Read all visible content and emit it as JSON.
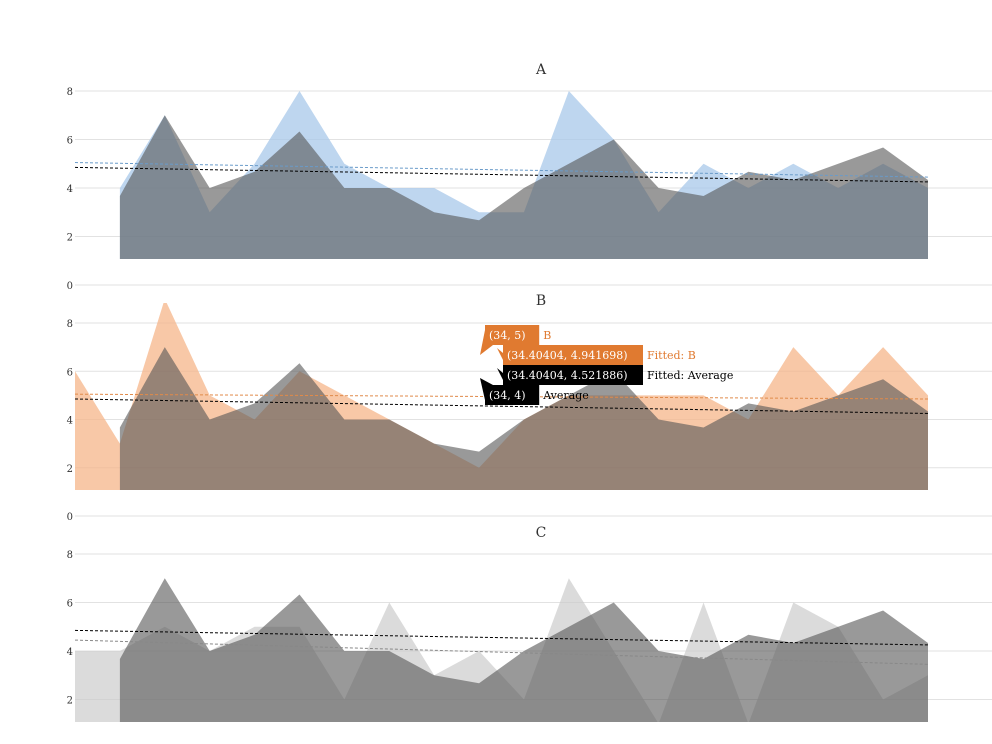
{
  "chart_data": [
    {
      "type": "area",
      "title": "A",
      "ylim": [
        0,
        8
      ],
      "yticks": [
        0,
        2,
        4,
        6,
        8
      ],
      "grid": true,
      "series": [
        {
          "name": "A",
          "color": "#a8c8ea",
          "opacity": 0.75,
          "x": [
            5,
            10,
            15,
            20,
            25,
            30,
            35,
            40,
            45,
            50,
            55,
            60,
            65,
            70,
            75,
            80,
            85,
            90,
            95
          ],
          "values": [
            4,
            7,
            3,
            5,
            8,
            5,
            4,
            4,
            3,
            3,
            8,
            6,
            3,
            5,
            4,
            5,
            4,
            5,
            4
          ]
        },
        {
          "name": "Average",
          "color": "#555555",
          "opacity": 0.6,
          "x": [
            5,
            10,
            15,
            20,
            25,
            30,
            35,
            40,
            45,
            50,
            55,
            60,
            65,
            70,
            75,
            80,
            85,
            90,
            95
          ],
          "values": [
            3.67,
            7.0,
            4.0,
            4.67,
            6.33,
            4.0,
            4.0,
            3.0,
            2.67,
            4.0,
            5.0,
            6.0,
            4.0,
            3.67,
            4.67,
            4.33,
            5.0,
            5.67,
            4.33
          ]
        }
      ],
      "trendlines": [
        {
          "name": "Fitted: A",
          "color": "#6a9bc9",
          "start": 5.05,
          "end": 4.45
        },
        {
          "name": "Fitted: Average",
          "color": "#000000",
          "start": 4.85,
          "end": 4.25
        }
      ]
    },
    {
      "type": "area",
      "title": "B",
      "ylim": [
        0,
        8
      ],
      "yticks": [
        0,
        2,
        4,
        6,
        8
      ],
      "grid": true,
      "series": [
        {
          "name": "B",
          "color": "#f5b58a",
          "opacity": 0.75,
          "x": [
            0,
            5,
            10,
            15,
            20,
            25,
            30,
            35,
            40,
            45,
            50,
            55,
            60,
            65,
            70,
            75,
            80,
            85,
            90,
            95
          ],
          "values": [
            6,
            3,
            9,
            5,
            4,
            6,
            5,
            4,
            3,
            2,
            4,
            5,
            5,
            5,
            5,
            4,
            7,
            5,
            7,
            5
          ]
        },
        {
          "name": "Average",
          "color": "#555555",
          "opacity": 0.6,
          "x": [
            5,
            10,
            15,
            20,
            25,
            30,
            35,
            40,
            45,
            50,
            55,
            60,
            65,
            70,
            75,
            80,
            85,
            90,
            95
          ],
          "values": [
            3.67,
            7.0,
            4.0,
            4.67,
            6.33,
            4.0,
            4.0,
            3.0,
            2.67,
            4.0,
            5.0,
            6.0,
            4.0,
            3.67,
            4.67,
            4.33,
            5.0,
            5.67,
            4.33
          ]
        }
      ],
      "trendlines": [
        {
          "name": "Fitted: B",
          "color": "#e08a4a",
          "start": 5.05,
          "end": 4.85
        },
        {
          "name": "Fitted: Average",
          "color": "#000000",
          "start": 4.85,
          "end": 4.25
        }
      ],
      "tooltips": [
        {
          "value": "(34, 5)",
          "label": "B",
          "bg": "#e07a30",
          "fg": "#e07a30",
          "text_fg": "#ffffff"
        },
        {
          "value": "(34.40404, 4.941698)",
          "label": "Fitted: B",
          "bg": "#e07a30",
          "fg": "#e07a30",
          "text_fg": "#ffffff"
        },
        {
          "value": "(34.40404, 4.521886)",
          "label": "Fitted: Average",
          "bg": "#000000",
          "fg": "#000000",
          "text_fg": "#ffffff"
        },
        {
          "value": "(34, 4)",
          "label": "Average",
          "bg": "#000000",
          "fg": "#000000",
          "text_fg": "#ffffff"
        }
      ]
    },
    {
      "type": "area",
      "title": "C",
      "ylim": [
        0,
        8
      ],
      "yticks": [
        2,
        4,
        6,
        8
      ],
      "grid": true,
      "series": [
        {
          "name": "C",
          "color": "#cccccc",
          "opacity": 0.7,
          "x": [
            0,
            5,
            10,
            15,
            20,
            25,
            30,
            35,
            40,
            45,
            50,
            55,
            60,
            65,
            70,
            75,
            80,
            85,
            90,
            95
          ],
          "values": [
            4,
            4,
            5,
            4,
            5,
            5,
            2,
            6,
            3,
            4,
            2,
            7,
            4,
            1,
            6,
            1,
            6,
            5,
            2,
            3
          ]
        },
        {
          "name": "Average",
          "color": "#555555",
          "opacity": 0.6,
          "x": [
            5,
            10,
            15,
            20,
            25,
            30,
            35,
            40,
            45,
            50,
            55,
            60,
            65,
            70,
            75,
            80,
            85,
            90,
            95
          ],
          "values": [
            3.67,
            7.0,
            4.0,
            4.67,
            6.33,
            4.0,
            4.0,
            3.0,
            2.67,
            4.0,
            5.0,
            6.0,
            4.0,
            3.67,
            4.67,
            4.33,
            5.0,
            5.67,
            4.33
          ]
        }
      ],
      "trendlines": [
        {
          "name": "Fitted: C",
          "color": "#888888",
          "start": 4.45,
          "end": 3.45
        },
        {
          "name": "Fitted: Average",
          "color": "#000000",
          "start": 4.85,
          "end": 4.25
        }
      ]
    }
  ]
}
